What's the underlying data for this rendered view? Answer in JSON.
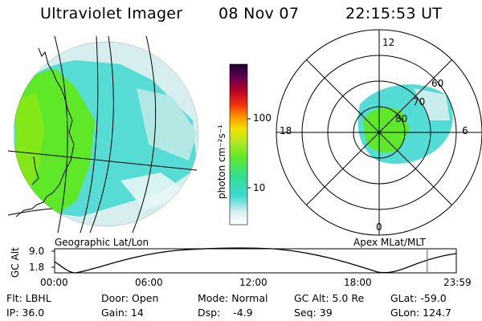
{
  "header": {
    "instrument": "Ultraviolet Imager",
    "date": "08 Nov 07",
    "time": "22:15:53 UT"
  },
  "colorbar": {
    "ticks": [
      "100",
      "10"
    ],
    "unit_label": "photon cm⁻²s⁻¹"
  },
  "geo_panel": {
    "caption": "Geographic Lat/Lon"
  },
  "polar_panel": {
    "caption": "Apex MLat/MLT",
    "mlt_labels": {
      "top": "12",
      "right": "6",
      "bottom": "0",
      "left": "18"
    },
    "mlat_labels": [
      "60",
      "70",
      "80"
    ]
  },
  "altitude_plot": {
    "ylabel": "GC Alt",
    "y_max": "9.0",
    "y_min": "1.8",
    "x_ticks": [
      "00:00",
      "06:00",
      "12:00",
      "18:00",
      "23:59"
    ],
    "current_marker_hours": 22.26
  },
  "status": {
    "row1": [
      "Flt: LBHL",
      "Door: Open",
      "Mode: Normal",
      "GC Alt: 5.0 Re",
      "GLat: -59.0"
    ],
    "row2": [
      "IP: 36.0",
      "Gain: 14",
      "Dsp:    -4.9",
      "Seq: 39",
      "GLon: 124.7"
    ]
  },
  "colors": {
    "ring_green": "#5fe828",
    "inner_cyan": "#3fe0d8",
    "light_cyan": "#b8ece8",
    "marker_red": "#e02020"
  }
}
